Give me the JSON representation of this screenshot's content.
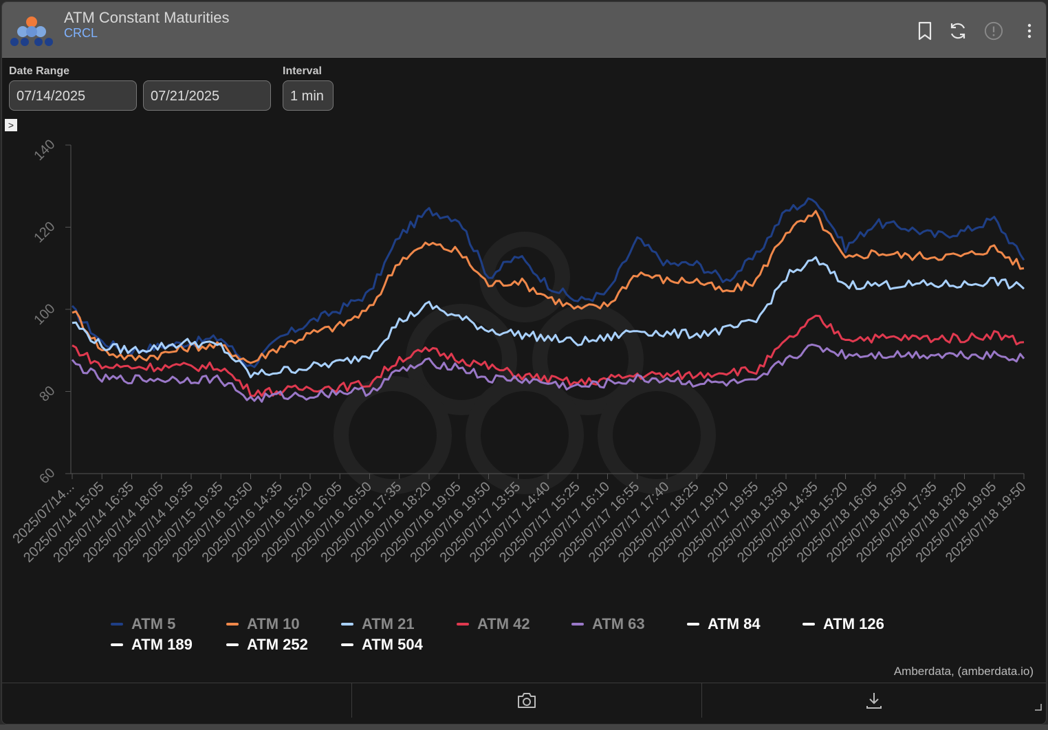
{
  "header": {
    "title": "ATM Constant Maturities",
    "subtitle": "CRCL",
    "icons": [
      "bookmark-icon",
      "refresh-icon",
      "info-icon",
      "more-vertical-icon"
    ]
  },
  "controls": {
    "date_range_label": "Date Range",
    "start_date": "07/14/2025",
    "end_date": "07/21/2025",
    "interval_label": "Interval",
    "interval_value": "1 min",
    "toggle_glyph": ">"
  },
  "colors": {
    "ATM 5": "#1f3f86",
    "ATM 10": "#f0884a",
    "ATM 21": "#a9d1ff",
    "ATM 42": "#e0394f",
    "ATM 63": "#9a78c8",
    "inactive": "#ffffff"
  },
  "chart_data": {
    "type": "line",
    "ylim": [
      60,
      140
    ],
    "y_ticks": [
      60,
      80,
      100,
      120,
      140
    ],
    "x_tick_labels": [
      "2025/07/14...",
      "2025/07/14 15:05",
      "2025/07/14 16:35",
      "2025/07/14 18:05",
      "2025/07/14 19:35",
      "2025/07/15 19:35",
      "2025/07/16 13:50",
      "2025/07/16 14:35",
      "2025/07/16 15:20",
      "2025/07/16 16:05",
      "2025/07/16 16:50",
      "2025/07/16 17:35",
      "2025/07/16 18:20",
      "2025/07/16 19:05",
      "2025/07/16 19:50",
      "2025/07/17 13:55",
      "2025/07/17 14:40",
      "2025/07/17 15:25",
      "2025/07/17 16:10",
      "2025/07/17 16:55",
      "2025/07/17 17:40",
      "2025/07/17 18:25",
      "2025/07/17 19:10",
      "2025/07/17 19:55",
      "2025/07/18 13:50",
      "2025/07/18 14:35",
      "2025/07/18 15:20",
      "2025/07/18 16:05",
      "2025/07/18 16:50",
      "2025/07/18 17:35",
      "2025/07/18 18:20",
      "2025/07/18 19:05",
      "2025/07/18 19:50"
    ],
    "series": [
      {
        "name": "ATM 5",
        "values": [
          100,
          92,
          90,
          91,
          92,
          93,
          86,
          93,
          97,
          100,
          104,
          118,
          124,
          122,
          108,
          113,
          106,
          102,
          104,
          117,
          111,
          111,
          107,
          113,
          124,
          127,
          115,
          121,
          120,
          118,
          119,
          122,
          112
        ]
      },
      {
        "name": "ATM 10",
        "values": [
          100,
          90,
          88,
          89,
          91,
          91,
          87,
          91,
          94,
          96,
          100,
          112,
          116,
          114,
          106,
          107,
          103,
          100,
          101,
          109,
          107,
          107,
          104,
          107,
          119,
          123,
          112,
          114,
          113,
          113,
          113,
          115,
          110
        ]
      },
      {
        "name": "ATM 21",
        "values": [
          97,
          91,
          90,
          91,
          92,
          91,
          84,
          85,
          86,
          87,
          89,
          97,
          101,
          98,
          95,
          94,
          93,
          92,
          93,
          95,
          94,
          94,
          95,
          97,
          108,
          112,
          106,
          106,
          106,
          106,
          106,
          107,
          105
        ]
      },
      {
        "name": "ATM 42",
        "values": [
          91,
          86,
          86,
          86,
          86,
          86,
          80,
          80,
          81,
          81,
          82,
          88,
          90,
          88,
          86,
          84,
          83,
          82,
          83,
          84,
          84,
          84,
          85,
          85,
          92,
          98,
          93,
          93,
          93,
          93,
          93,
          94,
          92
        ]
      },
      {
        "name": "ATM 63",
        "values": [
          87,
          83,
          83,
          83,
          83,
          83,
          78,
          79,
          79,
          80,
          80,
          85,
          87,
          86,
          83,
          83,
          82,
          81,
          82,
          83,
          83,
          82,
          82,
          82,
          88,
          91,
          89,
          89,
          89,
          89,
          89,
          89,
          88
        ]
      }
    ],
    "legend": [
      {
        "name": "ATM 5",
        "active": false
      },
      {
        "name": "ATM 10",
        "active": false
      },
      {
        "name": "ATM 21",
        "active": false
      },
      {
        "name": "ATM 42",
        "active": false
      },
      {
        "name": "ATM 63",
        "active": false
      },
      {
        "name": "ATM 84",
        "active": true
      },
      {
        "name": "ATM 126",
        "active": true
      },
      {
        "name": "ATM 189",
        "active": true
      },
      {
        "name": "ATM 252",
        "active": true
      },
      {
        "name": "ATM 504",
        "active": true
      }
    ],
    "legend_placement": "bottom",
    "credit": "Amberdata, (amberdata.io)"
  },
  "footer": {
    "icons": [
      "camera-icon",
      "download-icon"
    ]
  }
}
